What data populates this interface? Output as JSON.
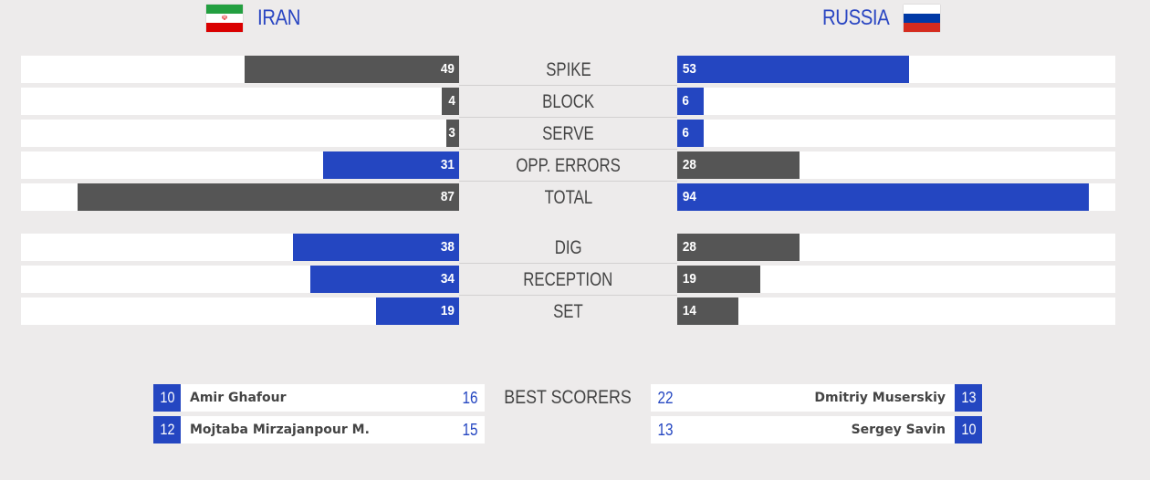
{
  "teams": {
    "left": {
      "name": "IRAN",
      "flag": "iran-flag"
    },
    "right": {
      "name": "RUSSIA",
      "flag": "russia-flag"
    }
  },
  "colors": {
    "blue": "#2446c1",
    "gray": "#555555",
    "team_text": "#2a46c2"
  },
  "max_scale": 100,
  "stats": [
    {
      "label": "SPIKE",
      "left": 49,
      "right": 53,
      "leader": "right"
    },
    {
      "label": "BLOCK",
      "left": 4,
      "right": 6,
      "leader": "right"
    },
    {
      "label": "SERVE",
      "left": 3,
      "right": 6,
      "leader": "right"
    },
    {
      "label": "OPP. ERRORS",
      "left": 31,
      "right": 28,
      "leader": "left"
    },
    {
      "label": "TOTAL",
      "left": 87,
      "right": 94,
      "leader": "right"
    },
    {
      "label": "DIG",
      "left": 38,
      "right": 28,
      "leader": "left"
    },
    {
      "label": "RECEPTION",
      "left": 34,
      "right": 19,
      "leader": "left"
    },
    {
      "label": "SET",
      "left": 19,
      "right": 14,
      "leader": "left"
    }
  ],
  "best_scorers": {
    "label": "BEST SCORERS",
    "left": [
      {
        "number": "10",
        "name": "Amir Ghafour",
        "points": "16"
      },
      {
        "number": "12",
        "name": "Mojtaba Mirzajanpour M.",
        "points": "15"
      }
    ],
    "right": [
      {
        "number": "13",
        "name": "Dmitriy Muserskiy",
        "points": "22"
      },
      {
        "number": "10",
        "name": "Sergey Savin",
        "points": "13"
      }
    ]
  }
}
